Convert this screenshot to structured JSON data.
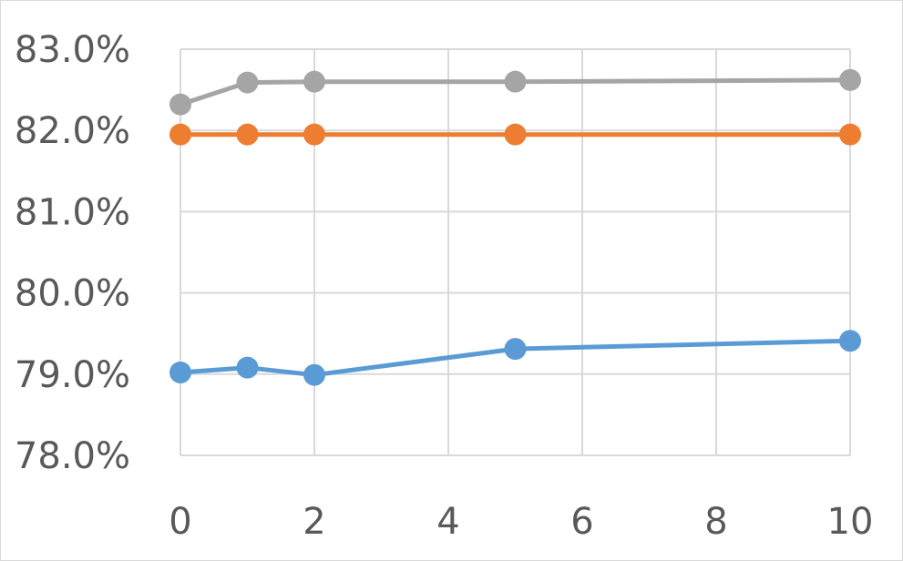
{
  "chart_data": {
    "type": "line",
    "title": "",
    "xlabel": "",
    "ylabel": "",
    "x": [
      0,
      1,
      2,
      5,
      10
    ],
    "xlim": [
      0,
      10
    ],
    "xticks": [
      0,
      2,
      4,
      6,
      8,
      10
    ],
    "xtick_labels": [
      "0",
      "2",
      "4",
      "6",
      "8",
      "10"
    ],
    "ylim": [
      78.0,
      83.0
    ],
    "yticks": [
      78.0,
      79.0,
      80.0,
      81.0,
      82.0,
      83.0
    ],
    "ytick_labels": [
      "78.0%",
      "79.0%",
      "80.0%",
      "81.0%",
      "82.0%",
      "83.0%"
    ],
    "grid": true,
    "legend": "none",
    "series": [
      {
        "color": "#5b9bd5",
        "values": [
          79.02,
          79.08,
          78.99,
          79.31,
          79.41
        ]
      },
      {
        "color": "#ed7d31",
        "values": [
          81.95,
          81.95,
          81.95,
          81.95,
          81.95
        ]
      },
      {
        "color": "#a5a5a5",
        "values": [
          82.32,
          82.59,
          82.6,
          82.6,
          82.62
        ]
      }
    ]
  }
}
